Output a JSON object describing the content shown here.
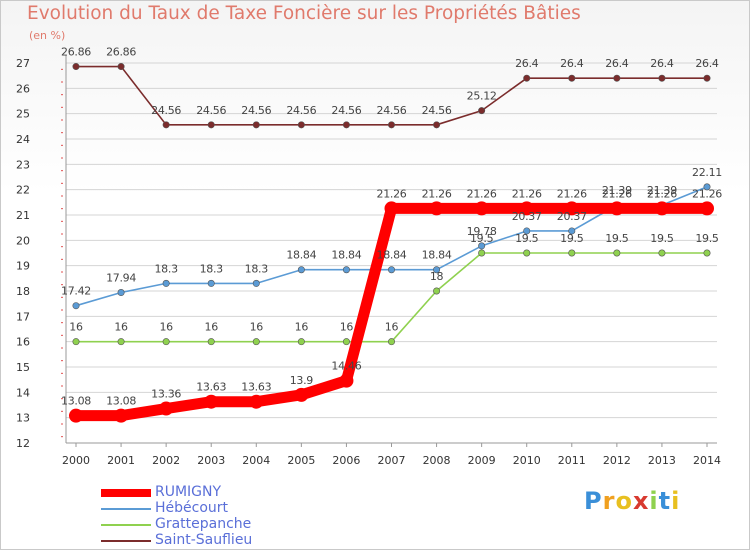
{
  "chart_data": {
    "type": "line",
    "title": "Evolution du Taux de Taxe Foncière sur les Propriétés Bâties",
    "ylabel": "(en %)",
    "xlabel": "",
    "x": [
      "2000",
      "2001",
      "2002",
      "2003",
      "2004",
      "2005",
      "2006",
      "2007",
      "2008",
      "2009",
      "2010",
      "2011",
      "2012",
      "2013",
      "2014"
    ],
    "ylim": [
      12,
      27
    ],
    "yticks": [
      "12",
      "13",
      "14",
      "15",
      "16",
      "17",
      "18",
      "19",
      "20",
      "21",
      "22",
      "23",
      "24",
      "25",
      "26",
      "27"
    ],
    "grid": true,
    "legend_position": "bottom-left",
    "series": [
      {
        "name": "RUMIGNY",
        "color": "#ff0000",
        "emphasis": true,
        "values": [
          13.08,
          13.08,
          13.36,
          13.63,
          13.63,
          13.9,
          14.46,
          21.26,
          21.26,
          21.26,
          21.26,
          21.26,
          21.26,
          21.26,
          21.26
        ],
        "labels": [
          "13.08",
          "13.08",
          "13.36",
          "13.63",
          "13.63",
          "13.9",
          "14.46",
          "21.26",
          "21.26",
          "21.26",
          "21.26",
          "21.26",
          "21.26",
          "21.26",
          "21.26"
        ]
      },
      {
        "name": "Hébécourt",
        "color": "#5b9bd5",
        "emphasis": false,
        "values": [
          17.42,
          17.94,
          18.3,
          18.3,
          18.3,
          18.84,
          18.84,
          18.84,
          18.84,
          19.78,
          20.37,
          20.37,
          21.39,
          21.39,
          22.11
        ],
        "labels": [
          "17.42",
          "17.94",
          "18.3",
          "18.3",
          "18.3",
          "18.84",
          "18.84",
          "18.84",
          "18.84",
          "19.78",
          "20.37",
          "20.37",
          "21.39",
          "21.39",
          "22.11"
        ]
      },
      {
        "name": "Grattepanche",
        "color": "#8fd14f",
        "emphasis": false,
        "values": [
          16,
          16,
          16,
          16,
          16,
          16,
          16,
          16,
          18,
          19.5,
          19.5,
          19.5,
          19.5,
          19.5,
          19.5
        ],
        "labels": [
          "16",
          "16",
          "16",
          "16",
          "16",
          "16",
          "16",
          "16",
          "18",
          "19.5",
          "19.5",
          "19.5",
          "19.5",
          "19.5",
          "19.5"
        ]
      },
      {
        "name": "Saint-Sauflieu",
        "color": "#7b2c2c",
        "emphasis": false,
        "values": [
          26.86,
          26.86,
          24.56,
          24.56,
          24.56,
          24.56,
          24.56,
          24.56,
          24.56,
          25.12,
          26.4,
          26.4,
          26.4,
          26.4,
          26.4
        ],
        "labels": [
          "26.86",
          "26.86",
          "24.56",
          "24.56",
          "24.56",
          "24.56",
          "24.56",
          "24.56",
          "24.56",
          "25.12",
          "26.4",
          "26.4",
          "26.4",
          "26.4",
          "26.4"
        ]
      }
    ]
  },
  "logo": {
    "letters": [
      "P",
      "r",
      "o",
      "x",
      "i",
      "t",
      "i"
    ],
    "colors": [
      "#3a8fd8",
      "#f0a020",
      "#e8c020",
      "#d83a30",
      "#8fd14f",
      "#3a8fd8",
      "#e8c020"
    ]
  }
}
